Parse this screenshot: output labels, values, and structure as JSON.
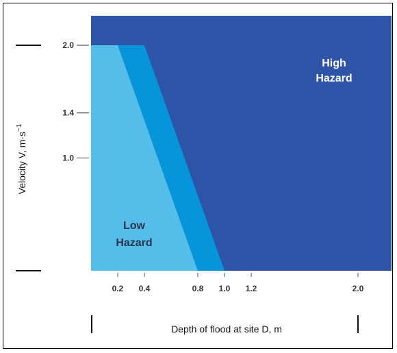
{
  "chart_data": {
    "type": "area",
    "xlabel": "Depth of flood at site D, m",
    "ylabel_main": "Velocity V, m·s",
    "ylabel_exponent": "−1",
    "x_ticks": [
      "0.2",
      "0.4",
      "0.8",
      "1.0",
      "1.2",
      "2.0"
    ],
    "y_ticks": [
      "2.0",
      "1.4",
      "1.0"
    ],
    "zones": [
      {
        "name": "high",
        "label_lines": [
          "High",
          "Hazard"
        ],
        "color": "#2d54a6"
      },
      {
        "name": "medium",
        "label_lines": [],
        "color": "#0695da"
      },
      {
        "name": "low",
        "label_lines": [
          "Low",
          "Hazard"
        ],
        "color": "#54bde9"
      }
    ],
    "boundaries": {
      "low_medium": [
        {
          "x": 0.0,
          "y": 2.0
        },
        {
          "x": 0.2,
          "y": 2.0
        },
        {
          "x": 0.8,
          "y": 0.0
        }
      ],
      "medium_high": [
        {
          "x": 0.4,
          "y": 2.0
        },
        {
          "x": 1.0,
          "y": 0.0
        }
      ]
    },
    "plot_area_color": "#2d54a6",
    "legend": "none",
    "grid": false
  }
}
